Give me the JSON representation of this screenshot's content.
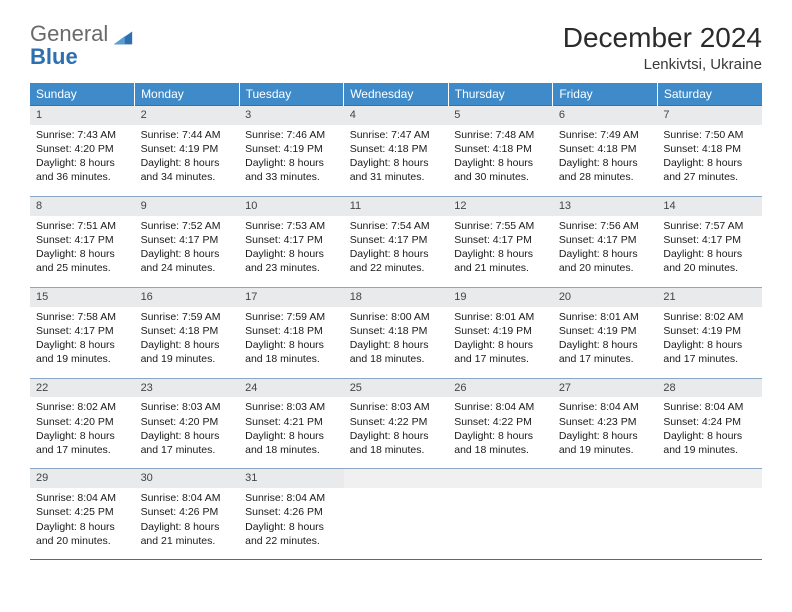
{
  "brand": {
    "word1": "General",
    "word2": "Blue"
  },
  "title": "December 2024",
  "location": "Lenkivtsi, Ukraine",
  "colors": {
    "header_bg": "#3f8bca",
    "header_text": "#ffffff",
    "row_border": "#3f6fa0",
    "daynum_bg": "#e8eaec",
    "logo_gray": "#6a6a6a",
    "logo_blue": "#2e6fb0"
  },
  "weekdays": [
    "Sunday",
    "Monday",
    "Tuesday",
    "Wednesday",
    "Thursday",
    "Friday",
    "Saturday"
  ],
  "weeks": [
    [
      {
        "n": "1",
        "sr": "7:43 AM",
        "ss": "4:20 PM",
        "dl": "8 hours and 36 minutes."
      },
      {
        "n": "2",
        "sr": "7:44 AM",
        "ss": "4:19 PM",
        "dl": "8 hours and 34 minutes."
      },
      {
        "n": "3",
        "sr": "7:46 AM",
        "ss": "4:19 PM",
        "dl": "8 hours and 33 minutes."
      },
      {
        "n": "4",
        "sr": "7:47 AM",
        "ss": "4:18 PM",
        "dl": "8 hours and 31 minutes."
      },
      {
        "n": "5",
        "sr": "7:48 AM",
        "ss": "4:18 PM",
        "dl": "8 hours and 30 minutes."
      },
      {
        "n": "6",
        "sr": "7:49 AM",
        "ss": "4:18 PM",
        "dl": "8 hours and 28 minutes."
      },
      {
        "n": "7",
        "sr": "7:50 AM",
        "ss": "4:18 PM",
        "dl": "8 hours and 27 minutes."
      }
    ],
    [
      {
        "n": "8",
        "sr": "7:51 AM",
        "ss": "4:17 PM",
        "dl": "8 hours and 25 minutes."
      },
      {
        "n": "9",
        "sr": "7:52 AM",
        "ss": "4:17 PM",
        "dl": "8 hours and 24 minutes."
      },
      {
        "n": "10",
        "sr": "7:53 AM",
        "ss": "4:17 PM",
        "dl": "8 hours and 23 minutes."
      },
      {
        "n": "11",
        "sr": "7:54 AM",
        "ss": "4:17 PM",
        "dl": "8 hours and 22 minutes."
      },
      {
        "n": "12",
        "sr": "7:55 AM",
        "ss": "4:17 PM",
        "dl": "8 hours and 21 minutes."
      },
      {
        "n": "13",
        "sr": "7:56 AM",
        "ss": "4:17 PM",
        "dl": "8 hours and 20 minutes."
      },
      {
        "n": "14",
        "sr": "7:57 AM",
        "ss": "4:17 PM",
        "dl": "8 hours and 20 minutes."
      }
    ],
    [
      {
        "n": "15",
        "sr": "7:58 AM",
        "ss": "4:17 PM",
        "dl": "8 hours and 19 minutes."
      },
      {
        "n": "16",
        "sr": "7:59 AM",
        "ss": "4:18 PM",
        "dl": "8 hours and 19 minutes."
      },
      {
        "n": "17",
        "sr": "7:59 AM",
        "ss": "4:18 PM",
        "dl": "8 hours and 18 minutes."
      },
      {
        "n": "18",
        "sr": "8:00 AM",
        "ss": "4:18 PM",
        "dl": "8 hours and 18 minutes."
      },
      {
        "n": "19",
        "sr": "8:01 AM",
        "ss": "4:19 PM",
        "dl": "8 hours and 17 minutes."
      },
      {
        "n": "20",
        "sr": "8:01 AM",
        "ss": "4:19 PM",
        "dl": "8 hours and 17 minutes."
      },
      {
        "n": "21",
        "sr": "8:02 AM",
        "ss": "4:19 PM",
        "dl": "8 hours and 17 minutes."
      }
    ],
    [
      {
        "n": "22",
        "sr": "8:02 AM",
        "ss": "4:20 PM",
        "dl": "8 hours and 17 minutes."
      },
      {
        "n": "23",
        "sr": "8:03 AM",
        "ss": "4:20 PM",
        "dl": "8 hours and 17 minutes."
      },
      {
        "n": "24",
        "sr": "8:03 AM",
        "ss": "4:21 PM",
        "dl": "8 hours and 18 minutes."
      },
      {
        "n": "25",
        "sr": "8:03 AM",
        "ss": "4:22 PM",
        "dl": "8 hours and 18 minutes."
      },
      {
        "n": "26",
        "sr": "8:04 AM",
        "ss": "4:22 PM",
        "dl": "8 hours and 18 minutes."
      },
      {
        "n": "27",
        "sr": "8:04 AM",
        "ss": "4:23 PM",
        "dl": "8 hours and 19 minutes."
      },
      {
        "n": "28",
        "sr": "8:04 AM",
        "ss": "4:24 PM",
        "dl": "8 hours and 19 minutes."
      }
    ],
    [
      {
        "n": "29",
        "sr": "8:04 AM",
        "ss": "4:25 PM",
        "dl": "8 hours and 20 minutes."
      },
      {
        "n": "30",
        "sr": "8:04 AM",
        "ss": "4:26 PM",
        "dl": "8 hours and 21 minutes."
      },
      {
        "n": "31",
        "sr": "8:04 AM",
        "ss": "4:26 PM",
        "dl": "8 hours and 22 minutes."
      },
      null,
      null,
      null,
      null
    ]
  ],
  "labels": {
    "sunrise": "Sunrise:",
    "sunset": "Sunset:",
    "daylight": "Daylight:"
  }
}
